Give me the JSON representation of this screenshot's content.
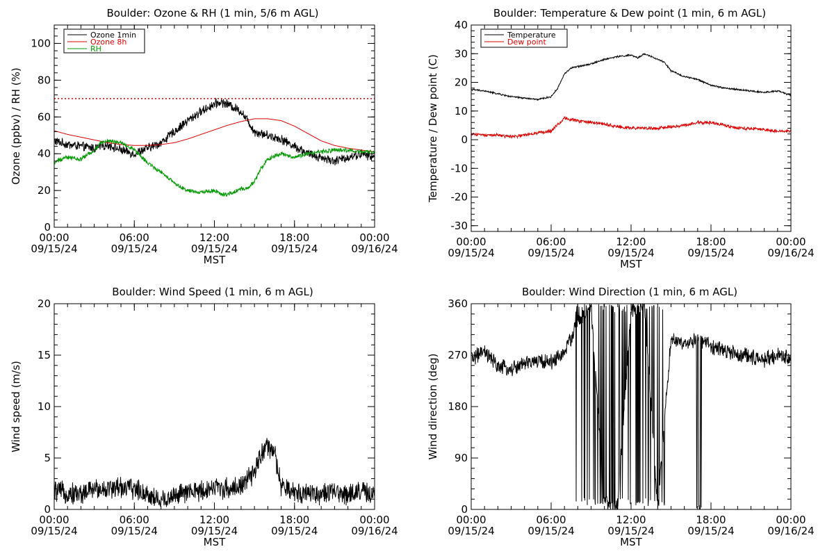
{
  "chart_data": [
    {
      "type": "line",
      "title": "Boulder: Ozone & RH (1 min, 5/6 m AGL)",
      "xlabel": "MST",
      "ylabel": "Ozone (ppbv) / RH (%)",
      "xlim": [
        0,
        24
      ],
      "ylim": [
        0,
        110
      ],
      "yticks": [
        0,
        20,
        40,
        60,
        80,
        100
      ],
      "xticks": [
        {
          "hour": 0,
          "time": "00:00",
          "date": "09/15/24"
        },
        {
          "hour": 6,
          "time": "06:00",
          "date": "09/15/24"
        },
        {
          "hour": 12,
          "time": "12:00",
          "date": "09/15/24"
        },
        {
          "hour": 18,
          "time": "18:00",
          "date": "09/15/24"
        },
        {
          "hour": 24,
          "time": "00:00",
          "date": "09/16/24"
        }
      ],
      "reference_line": {
        "y": 70,
        "color": "#cc0000",
        "style": "dotted"
      },
      "legend_position": "top-left",
      "series": [
        {
          "name": "Ozone 1min",
          "color": "#000000",
          "noise": 2.2,
          "x": [
            0,
            1,
            2,
            3,
            4,
            5,
            6,
            7,
            8,
            9,
            10,
            11,
            12,
            12.5,
            13,
            13.5,
            14,
            14.5,
            15,
            16,
            17,
            18,
            19,
            20,
            21,
            22,
            23,
            24
          ],
          "y": [
            47,
            45,
            44,
            43,
            45,
            42,
            40,
            43,
            46,
            52,
            58,
            63,
            67,
            68,
            67,
            65,
            63,
            58,
            52,
            50,
            48,
            44,
            40,
            38,
            36,
            38,
            40,
            38
          ]
        },
        {
          "name": "Ozone 8h",
          "color": "#dd0000",
          "noise": 0,
          "x": [
            0,
            1,
            2,
            3,
            4,
            5,
            6,
            7,
            8,
            9,
            10,
            11,
            12,
            13,
            14,
            15,
            16,
            17,
            18,
            19,
            20,
            21,
            22,
            23,
            24
          ],
          "y": [
            52.5,
            50.5,
            49,
            47.5,
            46,
            45,
            44.5,
            44.5,
            45,
            46,
            48,
            50.5,
            53,
            55.5,
            57.5,
            59,
            59,
            58,
            55,
            51,
            47,
            44.5,
            43,
            42,
            41
          ]
        },
        {
          "name": "RH",
          "color": "#009900",
          "noise": 1.0,
          "x": [
            0,
            0.5,
            1,
            2,
            3,
            3.5,
            4,
            5,
            6,
            7,
            8,
            9,
            10,
            11,
            12,
            12.5,
            13,
            14,
            14.5,
            15,
            15.5,
            16,
            17,
            18,
            19,
            20,
            21,
            22,
            23,
            24
          ],
          "y": [
            35,
            37,
            38,
            37,
            42,
            46,
            47,
            46,
            42,
            35,
            30,
            24,
            20,
            19,
            20,
            18,
            18,
            21,
            21,
            25,
            32,
            37,
            40,
            38,
            40,
            41,
            42,
            42,
            41,
            41
          ]
        }
      ]
    },
    {
      "type": "line",
      "title": "Boulder: Temperature & Dew point (1 min, 6 m AGL)",
      "xlabel": "MST",
      "ylabel": "Temperature / Dew point (C)",
      "xlim": [
        0,
        24
      ],
      "ylim": [
        -32,
        40
      ],
      "yticks": [
        -30,
        -20,
        -10,
        0,
        10,
        20,
        30,
        40
      ],
      "xticks": [
        {
          "hour": 0,
          "time": "00:00",
          "date": "09/15/24"
        },
        {
          "hour": 6,
          "time": "06:00",
          "date": "09/15/24"
        },
        {
          "hour": 12,
          "time": "12:00",
          "date": "09/15/24"
        },
        {
          "hour": 18,
          "time": "18:00",
          "date": "09/15/24"
        },
        {
          "hour": 24,
          "time": "00:00",
          "date": "09/16/24"
        }
      ],
      "legend_position": "top-left",
      "series": [
        {
          "name": "Temperature",
          "color": "#000000",
          "noise": 0.25,
          "x": [
            0,
            1,
            2,
            3,
            4,
            5,
            6,
            6.5,
            7,
            7.5,
            8,
            9,
            10,
            11,
            12,
            12.5,
            13,
            14,
            14.5,
            15,
            16,
            17,
            18,
            19,
            20,
            21,
            22,
            23,
            24
          ],
          "y": [
            17.5,
            17,
            16,
            15,
            14.5,
            14,
            15,
            18,
            23,
            25,
            25.5,
            26.5,
            28,
            29,
            29.5,
            28.5,
            30,
            28,
            27,
            24,
            22,
            21,
            19,
            18,
            17.5,
            17,
            16.5,
            17,
            15.5
          ]
        },
        {
          "name": "Dew point",
          "color": "#dd0000",
          "noise": 0.5,
          "x": [
            0,
            1,
            2,
            3,
            4,
            5,
            6,
            7,
            8,
            9,
            10,
            11,
            12,
            13,
            14,
            15,
            16,
            17,
            18,
            19,
            20,
            21,
            22,
            23,
            24
          ],
          "y": [
            2,
            1.5,
            1.5,
            1,
            1.5,
            2.5,
            3,
            7.5,
            6.5,
            6,
            5.5,
            4.5,
            4,
            4,
            4,
            4.5,
            5,
            6,
            6,
            5,
            4,
            4,
            3.5,
            3,
            3
          ]
        }
      ]
    },
    {
      "type": "line",
      "title": "Boulder: Wind Speed (1 min, 6 m AGL)",
      "xlabel": "MST",
      "ylabel": "Wind speed (m/s)",
      "xlim": [
        0,
        24
      ],
      "ylim": [
        0,
        20
      ],
      "yticks": [
        0,
        5,
        10,
        15,
        20
      ],
      "xticks": [
        {
          "hour": 0,
          "time": "00:00",
          "date": "09/15/24"
        },
        {
          "hour": 6,
          "time": "06:00",
          "date": "09/15/24"
        },
        {
          "hour": 12,
          "time": "12:00",
          "date": "09/15/24"
        },
        {
          "hour": 18,
          "time": "18:00",
          "date": "09/15/24"
        },
        {
          "hour": 24,
          "time": "00:00",
          "date": "09/16/24"
        }
      ],
      "series": [
        {
          "name": "",
          "color": "#000000",
          "noise": 0.9,
          "x": [
            0,
            1,
            2,
            3,
            4,
            5,
            6,
            7,
            8,
            9,
            10,
            11,
            12,
            13,
            14,
            15,
            15.5,
            16,
            16.5,
            17,
            18,
            19,
            20,
            21,
            22,
            23,
            24
          ],
          "y": [
            1.8,
            1.6,
            1.5,
            2,
            2,
            2.2,
            2.0,
            1.5,
            0.8,
            1.4,
            1.6,
            1.8,
            2.2,
            2.0,
            2.3,
            3.5,
            5.5,
            6,
            5.5,
            2.2,
            1.6,
            1.7,
            1.5,
            1.6,
            1.5,
            1.8,
            1.3
          ]
        }
      ]
    },
    {
      "type": "line",
      "title": "Boulder: Wind Direction (1 min, 6 m AGL)",
      "xlabel": "MST",
      "ylabel": "Wind direction (deg)",
      "xlim": [
        0,
        24
      ],
      "ylim": [
        0,
        360
      ],
      "yticks": [
        0,
        90,
        180,
        270,
        360
      ],
      "xticks": [
        {
          "hour": 0,
          "time": "00:00",
          "date": "09/15/24"
        },
        {
          "hour": 6,
          "time": "06:00",
          "date": "09/15/24"
        },
        {
          "hour": 12,
          "time": "12:00",
          "date": "09/15/24"
        },
        {
          "hour": 18,
          "time": "18:00",
          "date": "09/15/24"
        },
        {
          "hour": 24,
          "time": "00:00",
          "date": "09/16/24"
        }
      ],
      "series": [
        {
          "name": "",
          "color": "#000000",
          "noise": 12,
          "x": [
            0,
            1,
            2,
            3,
            4,
            5,
            6,
            7,
            7.5,
            8,
            9,
            10,
            11,
            12,
            13,
            14,
            15,
            16,
            17,
            18,
            19,
            20,
            21,
            22,
            23,
            24
          ],
          "y": [
            265,
            275,
            250,
            245,
            255,
            260,
            258,
            275,
            300,
            330,
            355,
            10,
            5,
            350,
            355,
            5,
            300,
            285,
            300,
            285,
            280,
            270,
            268,
            262,
            270,
            265
          ],
          "wrap": true
        }
      ]
    }
  ]
}
